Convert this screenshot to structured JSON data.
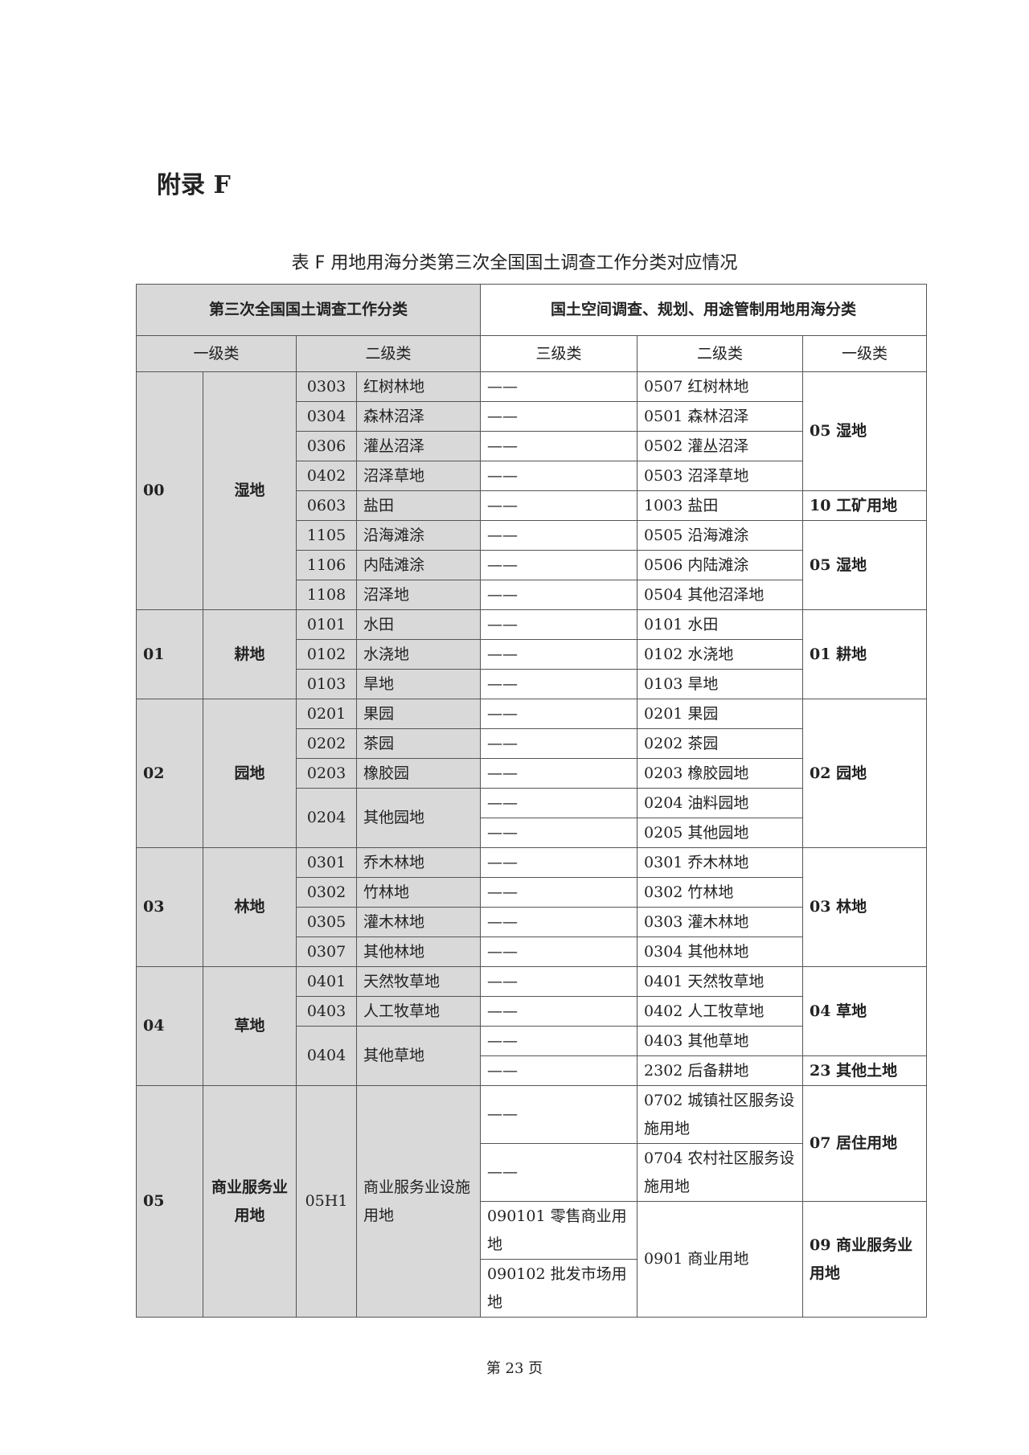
{
  "appendix_heading": "附录 F",
  "table_title": "表 F  用地用海分类第三次全国国土调查工作分类对应情况",
  "headers": {
    "left_group": "第三次全国国土调查工作分类",
    "right_group": "国土空间调查、规划、用途管制用地用海分类",
    "left_level1": "一级类",
    "left_level2": "二级类",
    "right_level3": "三级类",
    "right_level2": "二级类",
    "right_level1": "一级类"
  },
  "groups": [
    {
      "code": "00",
      "name": "湿地",
      "items": [
        {
          "code": "0303",
          "name": "红树林地",
          "targets": [
            {
              "third": "——",
              "second": "0507 红树林地",
              "first": "05 湿地"
            }
          ]
        },
        {
          "code": "0304",
          "name": "森林沼泽",
          "targets": [
            {
              "third": "——",
              "second": "0501 森林沼泽",
              "first": "05 湿地"
            }
          ]
        },
        {
          "code": "0306",
          "name": "灌丛沼泽",
          "targets": [
            {
              "third": "——",
              "second": "0502 灌丛沼泽",
              "first": "05 湿地"
            }
          ]
        },
        {
          "code": "0402",
          "name": "沼泽草地",
          "targets": [
            {
              "third": "——",
              "second": "0503 沼泽草地",
              "first": "05 湿地"
            }
          ]
        },
        {
          "code": "0603",
          "name": "盐田",
          "targets": [
            {
              "third": "——",
              "second": "1003 盐田",
              "first": "10 工矿用地"
            }
          ]
        },
        {
          "code": "1105",
          "name": "沿海滩涂",
          "targets": [
            {
              "third": "——",
              "second": "0505 沿海滩涂",
              "first": "05 湿地 "
            }
          ]
        },
        {
          "code": "1106",
          "name": "内陆滩涂",
          "targets": [
            {
              "third": "——",
              "second": "0506 内陆滩涂",
              "first": "05 湿地 "
            }
          ]
        },
        {
          "code": "1108",
          "name": "沼泽地",
          "targets": [
            {
              "third": "——",
              "second": "0504 其他沼泽地",
              "first": "05 湿地 "
            }
          ]
        }
      ]
    },
    {
      "code": "01",
      "name": "耕地",
      "items": [
        {
          "code": "0101",
          "name": "水田",
          "targets": [
            {
              "third": "——",
              "second": "0101 水田",
              "first": "01 耕地"
            }
          ]
        },
        {
          "code": "0102",
          "name": "水浇地",
          "targets": [
            {
              "third": "——",
              "second": "0102 水浇地",
              "first": "01 耕地"
            }
          ]
        },
        {
          "code": "0103",
          "name": "旱地",
          "targets": [
            {
              "third": "——",
              "second": "0103 旱地",
              "first": "01 耕地"
            }
          ]
        }
      ]
    },
    {
      "code": "02",
      "name": "园地",
      "items": [
        {
          "code": "0201",
          "name": "果园",
          "targets": [
            {
              "third": "——",
              "second": "0201 果园",
              "first": "02 园地"
            }
          ]
        },
        {
          "code": "0202",
          "name": "茶园",
          "targets": [
            {
              "third": "——",
              "second": "0202 茶园",
              "first": "02 园地"
            }
          ]
        },
        {
          "code": "0203",
          "name": "橡胶园",
          "targets": [
            {
              "third": "——",
              "second": "0203 橡胶园地",
              "first": "02 园地"
            }
          ]
        },
        {
          "code": "0204",
          "name": "其他园地",
          "targets": [
            {
              "third": "——",
              "second": "0204 油料园地",
              "first": "02 园地"
            },
            {
              "third": "——",
              "second": "0205 其他园地",
              "first": "02 园地"
            }
          ]
        }
      ]
    },
    {
      "code": "03",
      "name": "林地",
      "items": [
        {
          "code": "0301",
          "name": "乔木林地",
          "targets": [
            {
              "third": "——",
              "second": "0301 乔木林地",
              "first": "03 林地"
            }
          ]
        },
        {
          "code": "0302",
          "name": "竹林地",
          "targets": [
            {
              "third": "——",
              "second": "0302 竹林地",
              "first": "03 林地"
            }
          ]
        },
        {
          "code": "0305",
          "name": "灌木林地",
          "targets": [
            {
              "third": "——",
              "second": "0303 灌木林地",
              "first": "03 林地"
            }
          ]
        },
        {
          "code": "0307",
          "name": "其他林地",
          "targets": [
            {
              "third": "——",
              "second": "0304 其他林地",
              "first": "03 林地"
            }
          ]
        }
      ]
    },
    {
      "code": "04",
      "name": "草地",
      "items": [
        {
          "code": "0401",
          "name": "天然牧草地",
          "targets": [
            {
              "third": "——",
              "second": "0401 天然牧草地",
              "first": "04 草地"
            }
          ]
        },
        {
          "code": "0403",
          "name": "人工牧草地",
          "targets": [
            {
              "third": "——",
              "second": "0402 人工牧草地",
              "first": "04 草地"
            }
          ]
        },
        {
          "code": "0404",
          "name": "其他草地",
          "targets": [
            {
              "third": "——",
              "second": "0403 其他草地",
              "first": "04 草地"
            },
            {
              "third": "——",
              "second": "2302 后备耕地",
              "first": "23 其他土地"
            }
          ]
        }
      ]
    },
    {
      "code": "05",
      "name": "商业服务业用地",
      "items": [
        {
          "code": "05H1",
          "name": "商业服务业设施用地",
          "targets": [
            {
              "third": "——",
              "second": "0702 城镇社区服务设施用地",
              "first": "07 居住用地"
            },
            {
              "third": "——",
              "second": "0704 农村社区服务设施用地",
              "first": "07 居住用地"
            },
            {
              "third": "090101 零售商业用地",
              "second": "0901 商业用地",
              "first": "09 商业服务业用地"
            },
            {
              "third": "090102 批发市场用地",
              "second": "0901 商业用地",
              "first": "09 商业服务业用地"
            }
          ]
        }
      ]
    }
  ],
  "footer": "第 23 页"
}
